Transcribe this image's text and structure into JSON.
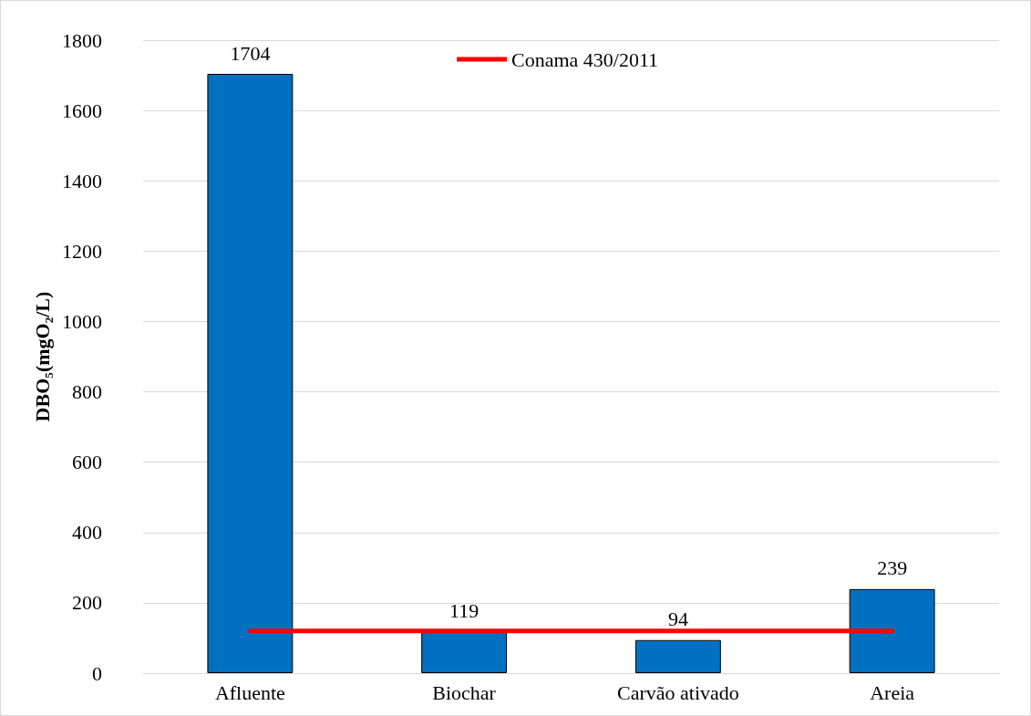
{
  "chart_data": {
    "type": "bar",
    "ylabel": "DBO₅(mgO₂/L)",
    "categories": [
      "Afluente",
      "Biochar",
      "Carvão ativado",
      "Areia"
    ],
    "series": [
      {
        "color": "#0070c0",
        "values": [
          1704,
          119,
          94,
          239
        ],
        "value_labels": [
          "1704",
          "119",
          "94",
          "239"
        ]
      },
      {
        "type": "line",
        "name": "Conama 430/2011",
        "color": "#ff0000",
        "values": [
          120,
          120,
          120,
          120
        ],
        "marker": "none"
      }
    ],
    "ylim": [
      0,
      1800
    ],
    "yticks": [
      0,
      200,
      400,
      600,
      800,
      1000,
      1200,
      1400,
      1600,
      1800
    ],
    "grid": "y",
    "legend": "top"
  }
}
